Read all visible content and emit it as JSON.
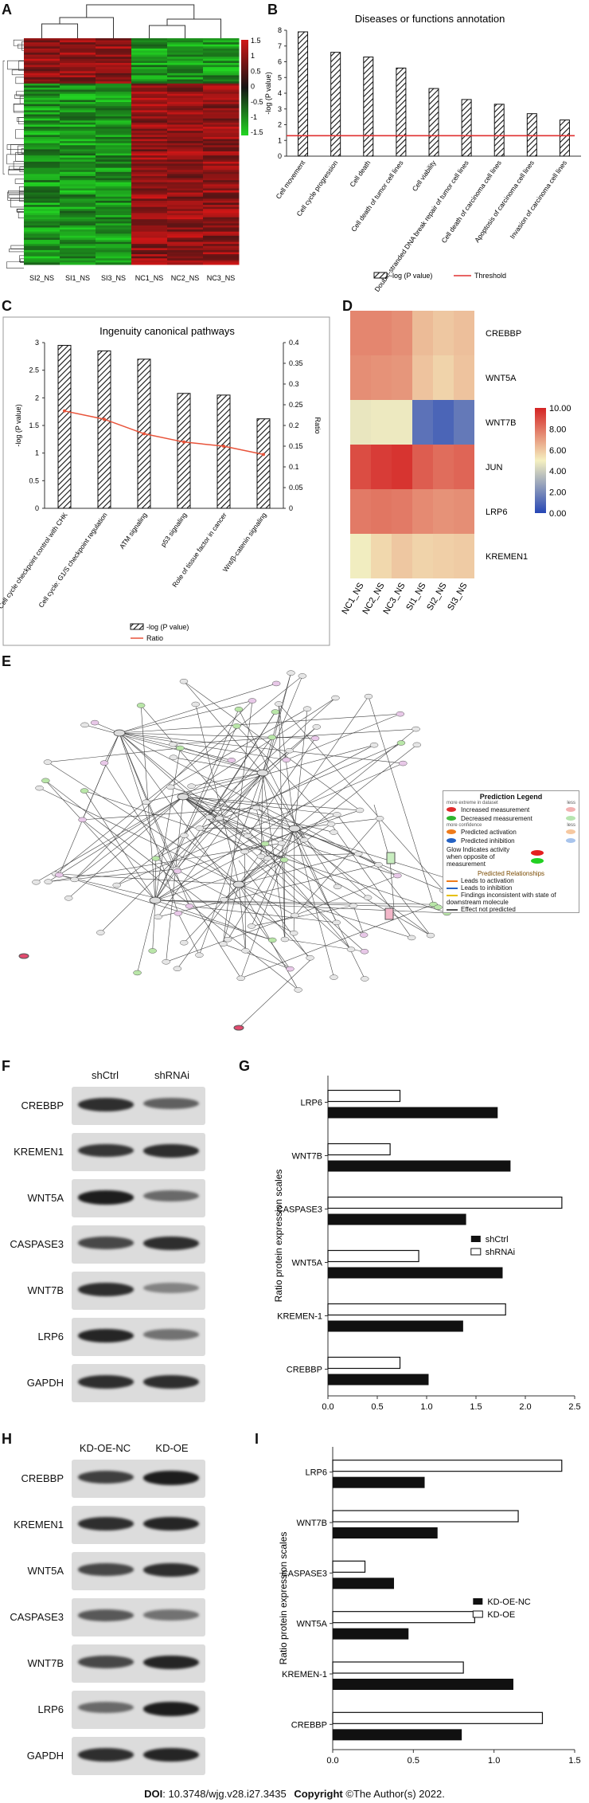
{
  "panels": {
    "A": {
      "label": "A",
      "columns": [
        "SI2_NS",
        "SI1_NS",
        "SI3_NS",
        "NC1_NS",
        "NC2_NS",
        "NC3_NS"
      ],
      "scale_ticks": [
        "1.5",
        "1",
        "0.5",
        "0",
        "-0.5",
        "-1",
        "-1.5"
      ]
    },
    "B": {
      "label": "B"
    },
    "C": {
      "label": "C"
    },
    "D": {
      "label": "D",
      "columns": [
        "NC1_NS",
        "NC2_NS",
        "NC3_NS",
        "SI1_NS",
        "SI2_NS",
        "SI3_NS"
      ],
      "rows": [
        "CREBBP",
        "WNT5A",
        "WNT7B",
        "JUN",
        "LRP6",
        "KREMEN1"
      ],
      "scale_ticks": [
        "10.00",
        "8.00",
        "6.00",
        "4.00",
        "2.00",
        "0.00"
      ]
    },
    "E": {
      "label": "E",
      "legend": {
        "title": "Prediction Legend",
        "more_extreme": "more extreme in dataset",
        "less": "less",
        "items1": [
          "Increased measurement",
          "Decreased measurement"
        ],
        "more_confidence": "more confidence",
        "items2": [
          "Predicted activation",
          "Predicted inhibition"
        ],
        "glow": "Glow Indicates activity when opposite of measurement",
        "relationships_title": "Predicted Relationships",
        "relationships": [
          "Leads to activation",
          "Leads to inhibition",
          "Findings inconsistent with state of downstream molecule",
          "Effect not predicted"
        ]
      }
    },
    "F": {
      "label": "F",
      "columns": [
        "shCtrl",
        "shRNAi"
      ],
      "rows": [
        "CREBBP",
        "KREMEN1",
        "WNT5A",
        "CASPASE3",
        "WNT7B",
        "LRP6",
        "GAPDH"
      ]
    },
    "G": {
      "label": "G"
    },
    "H": {
      "label": "H",
      "columns": [
        "KD-OE-NC",
        "KD-OE"
      ],
      "rows": [
        "CREBBP",
        "KREMEN1",
        "WNT5A",
        "CASPASE3",
        "WNT7B",
        "LRP6",
        "GAPDH"
      ]
    },
    "I": {
      "label": "I"
    }
  },
  "chart_data": [
    {
      "panel": "B",
      "type": "bar",
      "title": "Diseases or functions annotation",
      "ylabel": "-log (P value)",
      "categories": [
        "Cell movement",
        "Cell cycle progression",
        "Cell death",
        "Cell death of tumor cell lines",
        "Cell viability",
        "Double-stranded DNA break repair of tumor cell lines",
        "Cell death of carcinoma cell lines",
        "Apoptosis of carcinoma cell lines",
        "Invasion of carcinoma cell lines"
      ],
      "values": [
        7.9,
        6.6,
        6.3,
        5.6,
        4.3,
        3.6,
        3.3,
        2.7,
        2.3
      ],
      "threshold": 1.3,
      "ylim": [
        0,
        8
      ],
      "yticks": [
        "0",
        "1",
        "2",
        "3",
        "4",
        "5",
        "6",
        "7",
        "8"
      ],
      "legend": [
        "-log (P value)",
        "Threshold"
      ],
      "colors": {
        "bar_hatch": "#111111",
        "threshold": "#e03030"
      }
    },
    {
      "panel": "C",
      "type": "bar",
      "title": "Ingenuity canonical pathways",
      "ylabel": "-log (P value)",
      "y2label": "Ratio",
      "categories": [
        "Cell cycle checkpoint control with CHK",
        "Cell cycle: G1/S checkpoint regulation",
        "ATM signaling",
        "p53 signaling",
        "Role of tissue factor in cancer",
        "Wnt/β-catenin signaling"
      ],
      "values": [
        2.95,
        2.85,
        2.7,
        2.08,
        2.05,
        1.62
      ],
      "ratio": [
        0.235,
        0.215,
        0.18,
        0.16,
        0.15,
        0.13
      ],
      "ylim": [
        0,
        3
      ],
      "y2lim": [
        0,
        0.4
      ],
      "yticks": [
        "0",
        "0.5",
        "1",
        "1.5",
        "2",
        "2.5",
        "3"
      ],
      "y2ticks": [
        "0",
        "0.05",
        "0.1",
        "0.15",
        "0.2",
        "0.25",
        "0.3",
        "0.35",
        "0.4"
      ],
      "legend": [
        "-log (P value)",
        "Ratio"
      ],
      "colors": {
        "ratio": "#e8533a"
      }
    },
    {
      "panel": "D",
      "type": "heatmap",
      "rows": [
        "CREBBP",
        "WNT5A",
        "WNT7B",
        "JUN",
        "LRP6",
        "KREMEN1"
      ],
      "columns": [
        "NC1_NS",
        "NC2_NS",
        "NC3_NS",
        "SI1_NS",
        "SI2_NS",
        "SI3_NS"
      ],
      "values": [
        [
          7.6,
          7.6,
          7.4,
          6.3,
          6.0,
          6.2
        ],
        [
          7.4,
          7.3,
          7.2,
          6.1,
          5.7,
          6.1
        ],
        [
          4.7,
          4.8,
          4.8,
          1.3,
          0.9,
          1.5
        ],
        [
          9.0,
          9.4,
          9.6,
          8.6,
          8.2,
          8.4
        ],
        [
          7.9,
          8.0,
          7.9,
          7.5,
          7.3,
          7.4
        ],
        [
          4.9,
          5.6,
          6.0,
          5.7,
          5.8,
          5.9
        ]
      ],
      "scale": [
        0,
        10
      ]
    },
    {
      "panel": "G",
      "type": "bar",
      "orientation": "horizontal",
      "xlabel": "",
      "ylabel": "Ratio protein expression scales",
      "categories": [
        "LRP6",
        "WNT7B",
        "CASPASE3",
        "WNT5A",
        "KREMEN-1",
        "CREBBP"
      ],
      "series": [
        {
          "name": "shCtrl",
          "values": [
            1.72,
            1.85,
            1.4,
            1.77,
            1.37,
            1.02
          ]
        },
        {
          "name": "shRNAi",
          "values": [
            0.73,
            0.63,
            2.37,
            0.92,
            1.8,
            0.73
          ]
        }
      ],
      "xlim": [
        0,
        2.5
      ],
      "xticks": [
        "0.0",
        "0.5",
        "1.0",
        "1.5",
        "2.0",
        "2.5"
      ],
      "legend_position": "right"
    },
    {
      "panel": "I",
      "type": "bar",
      "orientation": "horizontal",
      "xlabel": "",
      "ylabel": "Ratio protein expression scales",
      "categories": [
        "LRP6",
        "WNT7B",
        "CASPASE3",
        "WNT5A",
        "KREMEN-1",
        "CREBBP"
      ],
      "series": [
        {
          "name": "KD-OE-NC",
          "values": [
            0.57,
            0.65,
            0.38,
            0.47,
            1.12,
            0.8
          ]
        },
        {
          "name": "KD-OE",
          "values": [
            1.42,
            1.15,
            0.2,
            0.88,
            0.81,
            1.3
          ]
        }
      ],
      "xlim": [
        0,
        1.5
      ],
      "xticks": [
        "0.0",
        "0.5",
        "1.0",
        "1.5"
      ],
      "legend_position": "right"
    }
  ],
  "blots": {
    "F": [
      [
        0.85,
        0.55
      ],
      [
        0.8,
        0.85
      ],
      [
        0.95,
        0.5
      ],
      [
        0.7,
        0.85
      ],
      [
        0.85,
        0.35
      ],
      [
        0.9,
        0.45
      ],
      [
        0.85,
        0.85
      ]
    ],
    "H": [
      [
        0.75,
        0.95
      ],
      [
        0.85,
        0.9
      ],
      [
        0.7,
        0.85
      ],
      [
        0.6,
        0.45
      ],
      [
        0.7,
        0.9
      ],
      [
        0.5,
        0.95
      ],
      [
        0.85,
        0.9
      ]
    ]
  },
  "footer": {
    "doi_label": "DOI",
    "doi": ": 10.3748/wjg.v28.i27.3435",
    "copyright_label": "Copyright",
    "copyright": " ©The Author(s) 2022."
  },
  "colors": {
    "heat_low": "#2646b5",
    "heat_mid": "#f5f0c0",
    "heat_high": "#d42424",
    "clust_green": "#22d622",
    "clust_red": "#d01616"
  }
}
